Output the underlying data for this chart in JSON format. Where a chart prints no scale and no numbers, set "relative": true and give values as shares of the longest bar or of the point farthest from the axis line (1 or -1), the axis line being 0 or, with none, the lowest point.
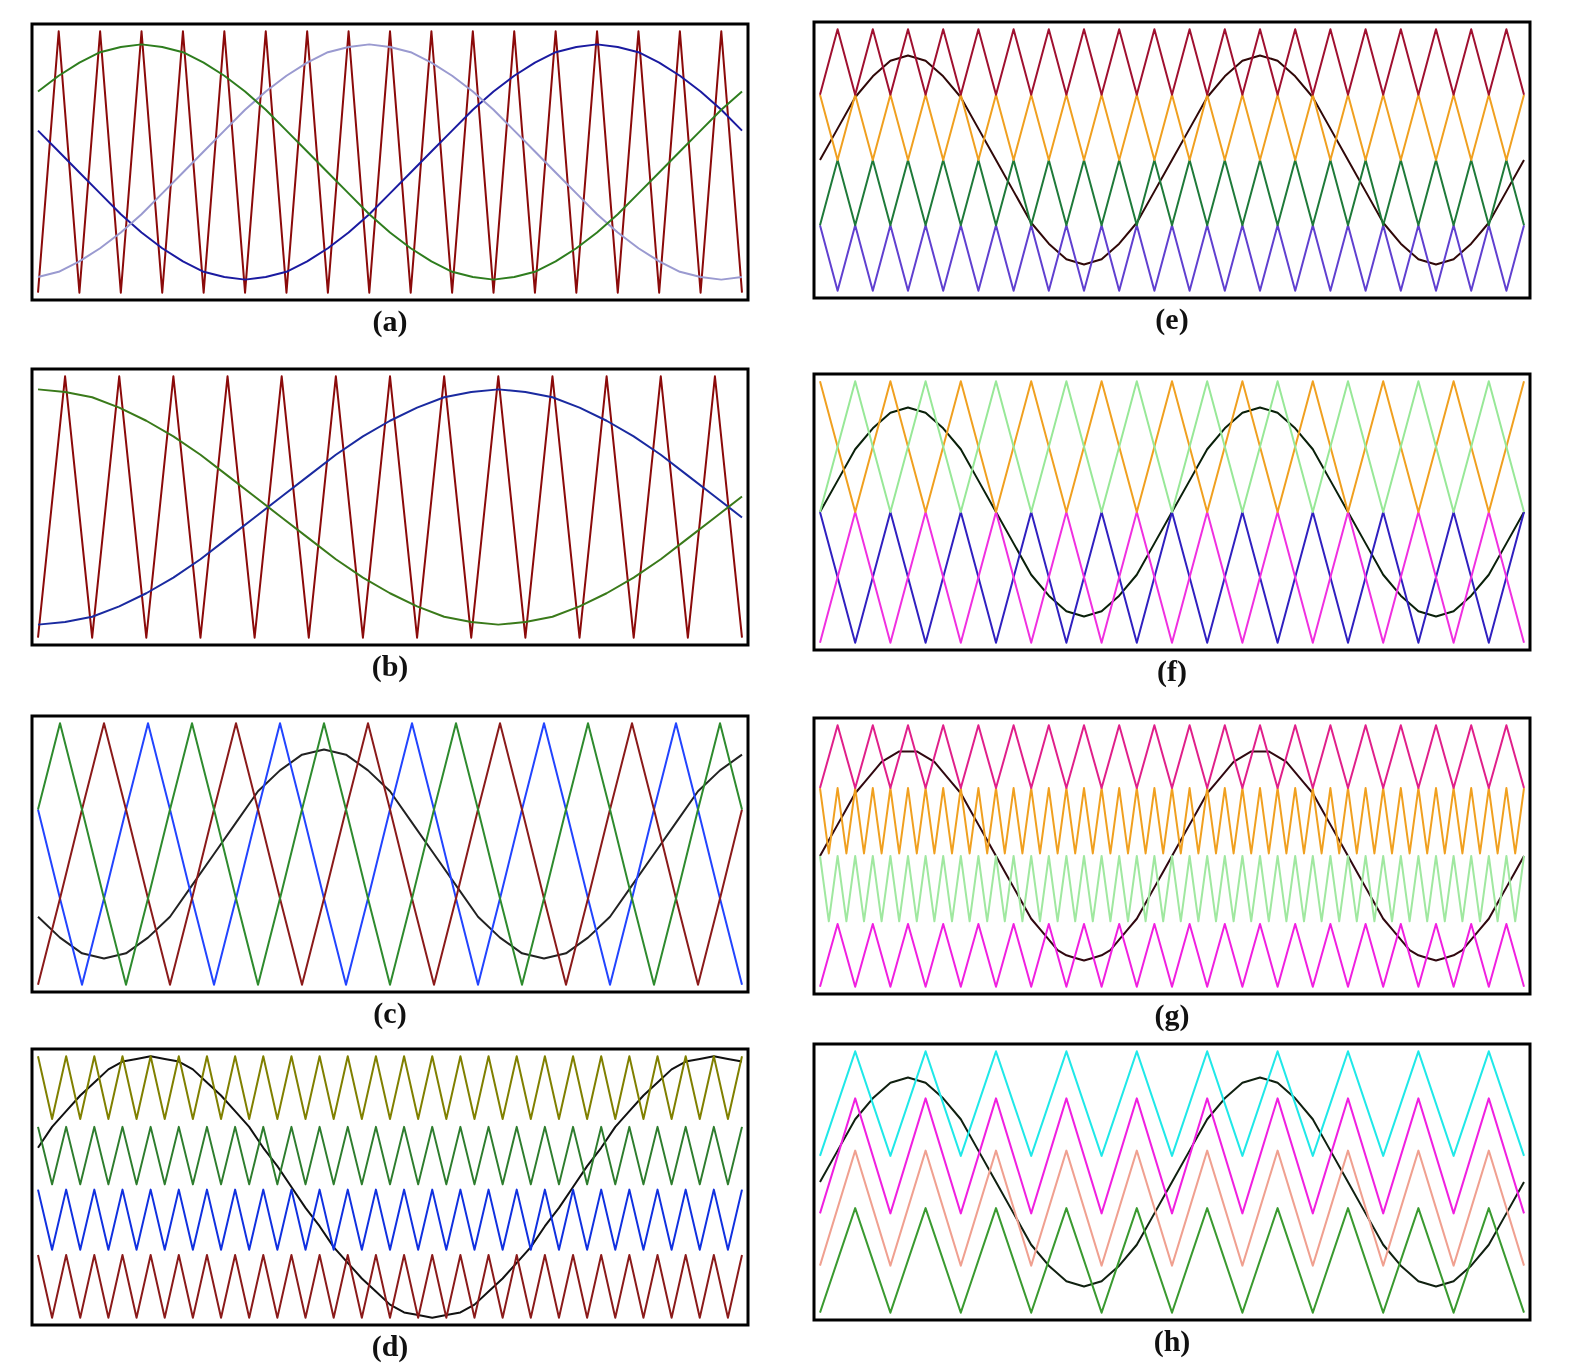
{
  "chart_data": [
    {
      "type": "line",
      "title": "(a)",
      "relative": true,
      "tick_labels": false,
      "categories": [
        null,
        null,
        null,
        null,
        null,
        null,
        null,
        null,
        null,
        null,
        null,
        null,
        null,
        null,
        null,
        null,
        null,
        null,
        null,
        null,
        null,
        null,
        null,
        null,
        null,
        null,
        null,
        null,
        null,
        null,
        null,
        null,
        null,
        null,
        null
      ],
      "series": [
        {
          "color": "#2e7d1e",
          "values": [
            0.77,
            0.83,
            0.88,
            0.92,
            0.94,
            0.95,
            0.94,
            0.92,
            0.88,
            0.83,
            0.77,
            0.7,
            0.62,
            0.54,
            0.46,
            0.38,
            0.3,
            0.23,
            0.17,
            0.12,
            0.08,
            0.06,
            0.05,
            0.06,
            0.08,
            0.12,
            0.17,
            0.23,
            0.3,
            0.38,
            0.46,
            0.54,
            0.62,
            0.7,
            0.77
          ]
        },
        {
          "color": "#9a9ad0",
          "values": [
            0.06,
            0.08,
            0.12,
            0.17,
            0.23,
            0.3,
            0.38,
            0.46,
            0.54,
            0.62,
            0.7,
            0.77,
            0.83,
            0.88,
            0.92,
            0.94,
            0.95,
            0.94,
            0.92,
            0.88,
            0.83,
            0.77,
            0.7,
            0.62,
            0.54,
            0.46,
            0.38,
            0.3,
            0.23,
            0.17,
            0.12,
            0.08,
            0.06,
            0.05,
            0.06
          ]
        },
        {
          "color": "#1a1aa0",
          "values": [
            0.62,
            0.54,
            0.46,
            0.38,
            0.3,
            0.23,
            0.17,
            0.12,
            0.08,
            0.06,
            0.05,
            0.06,
            0.08,
            0.12,
            0.17,
            0.23,
            0.3,
            0.38,
            0.46,
            0.54,
            0.62,
            0.7,
            0.77,
            0.83,
            0.88,
            0.92,
            0.94,
            0.95,
            0.94,
            0.92,
            0.88,
            0.83,
            0.77,
            0.7,
            0.62
          ]
        },
        {
          "color": "#8b0a0a",
          "values": [
            0,
            1,
            0,
            1,
            0,
            1,
            0,
            1,
            0,
            1,
            0,
            1,
            0,
            1,
            0,
            1,
            0,
            1,
            0,
            1,
            0,
            1,
            0,
            1,
            0,
            1,
            0,
            1,
            0,
            1,
            0,
            1,
            0,
            1,
            0
          ]
        }
      ]
    },
    {
      "type": "line",
      "title": "(b)",
      "relative": true,
      "tick_labels": false,
      "categories": [
        null,
        null,
        null,
        null,
        null,
        null,
        null,
        null,
        null,
        null,
        null,
        null,
        null,
        null,
        null,
        null,
        null,
        null,
        null,
        null,
        null,
        null,
        null,
        null,
        null,
        null,
        null
      ],
      "series": [
        {
          "color": "#3a7a1a",
          "values": [
            0.95,
            0.94,
            0.92,
            0.88,
            0.83,
            0.77,
            0.7,
            0.62,
            0.54,
            0.46,
            0.38,
            0.3,
            0.23,
            0.17,
            0.12,
            0.08,
            0.06,
            0.05,
            0.06,
            0.08,
            0.12,
            0.17,
            0.23,
            0.3,
            0.38,
            0.46,
            0.54
          ]
        },
        {
          "color": "#1a2aa0",
          "values": [
            0.05,
            0.06,
            0.08,
            0.12,
            0.17,
            0.23,
            0.3,
            0.38,
            0.46,
            0.54,
            0.62,
            0.7,
            0.77,
            0.83,
            0.88,
            0.92,
            0.94,
            0.95,
            0.94,
            0.92,
            0.88,
            0.83,
            0.77,
            0.7,
            0.62,
            0.54,
            0.46
          ]
        },
        {
          "color": "#8b0a0a",
          "values": [
            0,
            1,
            0,
            1,
            0,
            1,
            0,
            1,
            0,
            1,
            0,
            1,
            0,
            1,
            0,
            1,
            0,
            1,
            0,
            1,
            0,
            1,
            0,
            1,
            0,
            1,
            0
          ]
        }
      ]
    },
    {
      "type": "line",
      "title": "(c)",
      "relative": true,
      "tick_labels": false,
      "categories": [
        null,
        null,
        null,
        null,
        null,
        null,
        null,
        null,
        null,
        null,
        null,
        null,
        null,
        null,
        null,
        null,
        null,
        null,
        null,
        null,
        null,
        null,
        null,
        null,
        null,
        null,
        null,
        null,
        null,
        null,
        null,
        null,
        null
      ],
      "series": [
        {
          "color": "#2e8b2e",
          "values": [
            0.67,
            1,
            0.67,
            0.33,
            0,
            0.33,
            0.67,
            1,
            0.67,
            0.33,
            0,
            0.33,
            0.67,
            1,
            0.67,
            0.33,
            0,
            0.33,
            0.67,
            1,
            0.67,
            0.33,
            0,
            0.33,
            0.67,
            1,
            0.67,
            0.33,
            0,
            0.33,
            0.67,
            1,
            0.67
          ]
        },
        {
          "color": "#8b1a1a",
          "values": [
            0,
            0.33,
            0.67,
            1,
            0.67,
            0.33,
            0,
            0.33,
            0.67,
            1,
            0.67,
            0.33,
            0,
            0.33,
            0.67,
            1,
            0.67,
            0.33,
            0,
            0.33,
            0.67,
            1,
            0.67,
            0.33,
            0,
            0.33,
            0.67,
            1,
            0.67,
            0.33,
            0,
            0.33,
            0.67
          ]
        },
        {
          "color": "#2244ff",
          "values": [
            0.67,
            0.33,
            0,
            0.33,
            0.67,
            1,
            0.67,
            0.33,
            0,
            0.33,
            0.67,
            1,
            0.67,
            0.33,
            0,
            0.33,
            0.67,
            1,
            0.67,
            0.33,
            0,
            0.33,
            0.67,
            1,
            0.67,
            0.33,
            0,
            0.33,
            0.67,
            1,
            0.67,
            0.33,
            0
          ]
        },
        {
          "color": "#222222",
          "values": [
            0.26,
            0.18,
            0.12,
            0.1,
            0.12,
            0.18,
            0.26,
            0.38,
            0.5,
            0.62,
            0.74,
            0.82,
            0.88,
            0.9,
            0.88,
            0.82,
            0.74,
            0.62,
            0.5,
            0.38,
            0.26,
            0.18,
            0.12,
            0.1,
            0.12,
            0.18,
            0.26,
            0.38,
            0.5,
            0.62,
            0.74,
            0.82,
            0.88
          ]
        }
      ]
    },
    {
      "type": "line",
      "title": "(d)",
      "relative": true,
      "tick_labels": false,
      "categories": [
        null,
        null,
        null,
        null,
        null,
        null,
        null,
        null,
        null,
        null,
        null,
        null,
        null,
        null,
        null,
        null,
        null,
        null,
        null,
        null,
        null,
        null,
        null,
        null,
        null,
        null,
        null,
        null,
        null,
        null,
        null,
        null,
        null,
        null,
        null,
        null,
        null,
        null,
        null,
        null,
        null,
        null,
        null,
        null,
        null,
        null,
        null,
        null,
        null,
        null,
        null
      ],
      "series": [
        {
          "color": "#808000",
          "values": [
            1,
            0.76,
            1,
            0.76,
            1,
            0.76,
            1,
            0.76,
            1,
            0.76,
            1,
            0.76,
            1,
            0.76,
            1,
            0.76,
            1,
            0.76,
            1,
            0.76,
            1,
            0.76,
            1,
            0.76,
            1,
            0.76,
            1,
            0.76,
            1,
            0.76,
            1,
            0.76,
            1,
            0.76,
            1,
            0.76,
            1,
            0.76,
            1,
            0.76,
            1,
            0.76,
            1,
            0.76,
            1,
            0.76,
            1,
            0.76,
            1,
            0.76,
            1
          ]
        },
        {
          "color": "#2e7d2e",
          "values": [
            0.73,
            0.51,
            0.73,
            0.51,
            0.73,
            0.51,
            0.73,
            0.51,
            0.73,
            0.51,
            0.73,
            0.51,
            0.73,
            0.51,
            0.73,
            0.51,
            0.73,
            0.51,
            0.73,
            0.51,
            0.73,
            0.51,
            0.73,
            0.51,
            0.73,
            0.51,
            0.73,
            0.51,
            0.73,
            0.51,
            0.73,
            0.51,
            0.73,
            0.51,
            0.73,
            0.51,
            0.73,
            0.51,
            0.73,
            0.51,
            0.73,
            0.51,
            0.73,
            0.51,
            0.73,
            0.51,
            0.73,
            0.51,
            0.73,
            0.51,
            0.73
          ]
        },
        {
          "color": "#1030e0",
          "values": [
            0.49,
            0.26,
            0.49,
            0.26,
            0.49,
            0.26,
            0.49,
            0.26,
            0.49,
            0.26,
            0.49,
            0.26,
            0.49,
            0.26,
            0.49,
            0.26,
            0.49,
            0.26,
            0.49,
            0.26,
            0.49,
            0.26,
            0.49,
            0.26,
            0.49,
            0.26,
            0.49,
            0.26,
            0.49,
            0.26,
            0.49,
            0.26,
            0.49,
            0.26,
            0.49,
            0.26,
            0.49,
            0.26,
            0.49,
            0.26,
            0.49,
            0.26,
            0.49,
            0.26,
            0.49,
            0.26,
            0.49,
            0.26,
            0.49,
            0.26,
            0.49
          ]
        },
        {
          "color": "#8b1a1a",
          "values": [
            0.24,
            0,
            0.24,
            0,
            0.24,
            0,
            0.24,
            0,
            0.24,
            0,
            0.24,
            0,
            0.24,
            0,
            0.24,
            0,
            0.24,
            0,
            0.24,
            0,
            0.24,
            0,
            0.24,
            0,
            0.24,
            0,
            0.24,
            0,
            0.24,
            0,
            0.24,
            0,
            0.24,
            0,
            0.24,
            0,
            0.24,
            0,
            0.24,
            0,
            0.24,
            0,
            0.24,
            0,
            0.24,
            0,
            0.24,
            0,
            0.24,
            0,
            0.24
          ]
        },
        {
          "color": "#111111",
          "values": [
            0.65,
            0.73,
            0.79,
            0.85,
            0.9,
            0.95,
            0.98,
            0.99,
            1,
            0.99,
            0.98,
            0.95,
            0.9,
            0.85,
            0.79,
            0.73,
            0.65,
            0.58,
            0.5,
            0.42,
            0.35,
            0.27,
            0.21,
            0.15,
            0.1,
            0.05,
            0.02,
            0.01,
            0,
            0.01,
            0.02,
            0.05,
            0.1,
            0.15,
            0.21,
            0.27,
            0.35,
            0.42,
            0.5,
            0.58,
            0.65,
            0.73,
            0.79,
            0.85,
            0.9,
            0.95,
            0.98,
            0.99,
            1,
            0.99,
            0.98
          ]
        }
      ]
    },
    {
      "type": "line",
      "title": "(e)",
      "relative": true,
      "tick_labels": false,
      "categories": [
        null,
        null,
        null,
        null,
        null,
        null,
        null,
        null,
        null,
        null,
        null,
        null,
        null,
        null,
        null,
        null,
        null,
        null,
        null,
        null,
        null,
        null,
        null,
        null,
        null,
        null,
        null,
        null,
        null,
        null,
        null,
        null,
        null,
        null,
        null,
        null,
        null,
        null,
        null,
        null,
        null
      ],
      "series": [
        {
          "color": "#a01030",
          "values": [
            0.75,
            1,
            0.75,
            1,
            0.75,
            1,
            0.75,
            1,
            0.75,
            1,
            0.75,
            1,
            0.75,
            1,
            0.75,
            1,
            0.75,
            1,
            0.75,
            1,
            0.75,
            1,
            0.75,
            1,
            0.75,
            1,
            0.75,
            1,
            0.75,
            1,
            0.75,
            1,
            0.75,
            1,
            0.75,
            1,
            0.75,
            1,
            0.75,
            1,
            0.75
          ]
        },
        {
          "color": "#f0a020",
          "values": [
            0.75,
            0.5,
            0.75,
            0.5,
            0.75,
            0.5,
            0.75,
            0.5,
            0.75,
            0.5,
            0.75,
            0.5,
            0.75,
            0.5,
            0.75,
            0.5,
            0.75,
            0.5,
            0.75,
            0.5,
            0.75,
            0.5,
            0.75,
            0.5,
            0.75,
            0.5,
            0.75,
            0.5,
            0.75,
            0.5,
            0.75,
            0.5,
            0.75,
            0.5,
            0.75,
            0.5,
            0.75,
            0.5,
            0.75,
            0.5,
            0.75
          ]
        },
        {
          "color": "#1e7a3a",
          "values": [
            0.25,
            0.5,
            0.25,
            0.5,
            0.25,
            0.5,
            0.25,
            0.5,
            0.25,
            0.5,
            0.25,
            0.5,
            0.25,
            0.5,
            0.25,
            0.5,
            0.25,
            0.5,
            0.25,
            0.5,
            0.25,
            0.5,
            0.25,
            0.5,
            0.25,
            0.5,
            0.25,
            0.5,
            0.25,
            0.5,
            0.25,
            0.5,
            0.25,
            0.5,
            0.25,
            0.5,
            0.25,
            0.5,
            0.25,
            0.5,
            0.25
          ]
        },
        {
          "color": "#6040d0",
          "values": [
            0.25,
            0,
            0.25,
            0,
            0.25,
            0,
            0.25,
            0,
            0.25,
            0,
            0.25,
            0,
            0.25,
            0,
            0.25,
            0,
            0.25,
            0,
            0.25,
            0,
            0.25,
            0,
            0.25,
            0,
            0.25,
            0,
            0.25,
            0,
            0.25,
            0,
            0.25,
            0,
            0.25,
            0,
            0.25,
            0,
            0.25,
            0,
            0.25,
            0,
            0.25
          ]
        },
        {
          "color": "#300808",
          "values": [
            0.5,
            0.62,
            0.74,
            0.82,
            0.88,
            0.9,
            0.88,
            0.82,
            0.74,
            0.62,
            0.5,
            0.38,
            0.26,
            0.18,
            0.12,
            0.1,
            0.12,
            0.18,
            0.26,
            0.38,
            0.5,
            0.62,
            0.74,
            0.82,
            0.88,
            0.9,
            0.88,
            0.82,
            0.74,
            0.62,
            0.5,
            0.38,
            0.26,
            0.18,
            0.12,
            0.1,
            0.12,
            0.18,
            0.26,
            0.38,
            0.5
          ]
        }
      ]
    },
    {
      "type": "line",
      "title": "(f)",
      "relative": true,
      "tick_labels": false,
      "categories": [
        null,
        null,
        null,
        null,
        null,
        null,
        null,
        null,
        null,
        null,
        null,
        null,
        null,
        null,
        null,
        null,
        null,
        null,
        null,
        null,
        null,
        null,
        null,
        null,
        null,
        null,
        null,
        null,
        null,
        null,
        null,
        null,
        null,
        null,
        null,
        null,
        null,
        null,
        null,
        null,
        null
      ],
      "series": [
        {
          "color": "#98e898",
          "values": [
            0.5,
            0.75,
            1,
            0.75,
            0.5,
            0.75,
            1,
            0.75,
            0.5,
            0.75,
            1,
            0.75,
            0.5,
            0.75,
            1,
            0.75,
            0.5,
            0.75,
            1,
            0.75,
            0.5,
            0.75,
            1,
            0.75,
            0.5,
            0.75,
            1,
            0.75,
            0.5,
            0.75,
            1,
            0.75,
            0.5,
            0.75,
            1,
            0.75,
            0.5,
            0.75,
            1,
            0.75,
            0.5
          ]
        },
        {
          "color": "#f0a020",
          "values": [
            1,
            0.75,
            0.5,
            0.75,
            1,
            0.75,
            0.5,
            0.75,
            1,
            0.75,
            0.5,
            0.75,
            1,
            0.75,
            0.5,
            0.75,
            1,
            0.75,
            0.5,
            0.75,
            1,
            0.75,
            0.5,
            0.75,
            1,
            0.75,
            0.5,
            0.75,
            1,
            0.75,
            0.5,
            0.75,
            1,
            0.75,
            0.5,
            0.75,
            1,
            0.75,
            0.5,
            0.75,
            1
          ]
        },
        {
          "color": "#f030e0",
          "values": [
            0,
            0.25,
            0.5,
            0.25,
            0,
            0.25,
            0.5,
            0.25,
            0,
            0.25,
            0.5,
            0.25,
            0,
            0.25,
            0.5,
            0.25,
            0,
            0.25,
            0.5,
            0.25,
            0,
            0.25,
            0.5,
            0.25,
            0,
            0.25,
            0.5,
            0.25,
            0,
            0.25,
            0.5,
            0.25,
            0,
            0.25,
            0.5,
            0.25,
            0,
            0.25,
            0.5,
            0.25,
            0
          ]
        },
        {
          "color": "#3020c0",
          "values": [
            0.5,
            0.25,
            0,
            0.25,
            0.5,
            0.25,
            0,
            0.25,
            0.5,
            0.25,
            0,
            0.25,
            0.5,
            0.25,
            0,
            0.25,
            0.5,
            0.25,
            0,
            0.25,
            0.5,
            0.25,
            0,
            0.25,
            0.5,
            0.25,
            0,
            0.25,
            0.5,
            0.25,
            0,
            0.25,
            0.5,
            0.25,
            0,
            0.25,
            0.5,
            0.25,
            0,
            0.25,
            0.5
          ]
        },
        {
          "color": "#0a200a",
          "values": [
            0.5,
            0.62,
            0.74,
            0.82,
            0.88,
            0.9,
            0.88,
            0.82,
            0.74,
            0.62,
            0.5,
            0.38,
            0.26,
            0.18,
            0.12,
            0.1,
            0.12,
            0.18,
            0.26,
            0.38,
            0.5,
            0.62,
            0.74,
            0.82,
            0.88,
            0.9,
            0.88,
            0.82,
            0.74,
            0.62,
            0.5,
            0.38,
            0.26,
            0.18,
            0.12,
            0.1,
            0.12,
            0.18,
            0.26,
            0.38,
            0.5
          ]
        }
      ]
    },
    {
      "type": "line",
      "title": "(g)",
      "relative": true,
      "tick_labels": false,
      "categories": [
        null,
        null,
        null,
        null,
        null,
        null,
        null,
        null,
        null,
        null,
        null,
        null,
        null,
        null,
        null,
        null,
        null,
        null,
        null,
        null,
        null,
        null,
        null,
        null,
        null,
        null,
        null,
        null,
        null,
        null,
        null,
        null,
        null,
        null,
        null,
        null,
        null,
        null,
        null,
        null,
        null,
        null,
        null,
        null,
        null,
        null,
        null,
        null,
        null,
        null,
        null,
        null,
        null,
        null,
        null,
        null,
        null,
        null,
        null,
        null,
        null,
        null,
        null,
        null,
        null,
        null,
        null,
        null,
        null,
        null,
        null,
        null,
        null,
        null,
        null,
        null,
        null,
        null,
        null,
        null,
        null
      ],
      "series": [
        {
          "color": "#e0208a",
          "values": [
            0.76,
            0.88,
            1,
            0.88,
            0.76,
            0.88,
            1,
            0.88,
            0.76,
            0.88,
            1,
            0.88,
            0.76,
            0.88,
            1,
            0.88,
            0.76,
            0.88,
            1,
            0.88,
            0.76,
            0.88,
            1,
            0.88,
            0.76,
            0.88,
            1,
            0.88,
            0.76,
            0.88,
            1,
            0.88,
            0.76,
            0.88,
            1,
            0.88,
            0.76,
            0.88,
            1,
            0.88,
            0.76,
            0.88,
            1,
            0.88,
            0.76,
            0.88,
            1,
            0.88,
            0.76,
            0.88,
            1,
            0.88,
            0.76,
            0.88,
            1,
            0.88,
            0.76,
            0.88,
            1,
            0.88,
            0.76,
            0.88,
            1,
            0.88,
            0.76,
            0.88,
            1,
            0.88,
            0.76,
            0.88,
            1,
            0.88,
            0.76,
            0.88,
            1,
            0.88,
            0.76,
            0.88,
            1,
            0.88,
            0.76
          ]
        },
        {
          "color": "#f0a020",
          "values": [
            0.76,
            0.51,
            0.76,
            0.51,
            0.76,
            0.51,
            0.76,
            0.51,
            0.76,
            0.51,
            0.76,
            0.51,
            0.76,
            0.51,
            0.76,
            0.51,
            0.76,
            0.51,
            0.76,
            0.51,
            0.76,
            0.51,
            0.76,
            0.51,
            0.76,
            0.51,
            0.76,
            0.51,
            0.76,
            0.51,
            0.76,
            0.51,
            0.76,
            0.51,
            0.76,
            0.51,
            0.76,
            0.51,
            0.76,
            0.51,
            0.76,
            0.51,
            0.76,
            0.51,
            0.76,
            0.51,
            0.76,
            0.51,
            0.76,
            0.51,
            0.76,
            0.51,
            0.76,
            0.51,
            0.76,
            0.51,
            0.76,
            0.51,
            0.76,
            0.51,
            0.76,
            0.51,
            0.76,
            0.51,
            0.76,
            0.51,
            0.76,
            0.51,
            0.76,
            0.51,
            0.76,
            0.51,
            0.76,
            0.51,
            0.76,
            0.51,
            0.76,
            0.51,
            0.76,
            0.51,
            0.76
          ]
        },
        {
          "color": "#a0e8a0",
          "values": [
            0.5,
            0.25,
            0.5,
            0.25,
            0.5,
            0.25,
            0.5,
            0.25,
            0.5,
            0.25,
            0.5,
            0.25,
            0.5,
            0.25,
            0.5,
            0.25,
            0.5,
            0.25,
            0.5,
            0.25,
            0.5,
            0.25,
            0.5,
            0.25,
            0.5,
            0.25,
            0.5,
            0.25,
            0.5,
            0.25,
            0.5,
            0.25,
            0.5,
            0.25,
            0.5,
            0.25,
            0.5,
            0.25,
            0.5,
            0.25,
            0.5,
            0.25,
            0.5,
            0.25,
            0.5,
            0.25,
            0.5,
            0.25,
            0.5,
            0.25,
            0.5,
            0.25,
            0.5,
            0.25,
            0.5,
            0.25,
            0.5,
            0.25,
            0.5,
            0.25,
            0.5,
            0.25,
            0.5,
            0.25,
            0.5,
            0.25,
            0.5,
            0.25,
            0.5,
            0.25,
            0.5,
            0.25,
            0.5,
            0.25,
            0.5,
            0.25,
            0.5,
            0.25,
            0.5,
            0.25,
            0.5
          ]
        },
        {
          "color": "#f020e0",
          "values": [
            0,
            0.12,
            0.24,
            0.12,
            0,
            0.12,
            0.24,
            0.12,
            0,
            0.12,
            0.24,
            0.12,
            0,
            0.12,
            0.24,
            0.12,
            0,
            0.12,
            0.24,
            0.12,
            0,
            0.12,
            0.24,
            0.12,
            0,
            0.12,
            0.24,
            0.12,
            0,
            0.12,
            0.24,
            0.12,
            0,
            0.12,
            0.24,
            0.12,
            0,
            0.12,
            0.24,
            0.12,
            0,
            0.12,
            0.24,
            0.12,
            0,
            0.12,
            0.24,
            0.12,
            0,
            0.12,
            0.24,
            0.12,
            0,
            0.12,
            0.24,
            0.12,
            0,
            0.12,
            0.24,
            0.12,
            0,
            0.12,
            0.24,
            0.12,
            0,
            0.12,
            0.24,
            0.12,
            0,
            0.12,
            0.24,
            0.12,
            0,
            0.12,
            0.24,
            0.12,
            0,
            0.12,
            0.24,
            0.12,
            0
          ]
        },
        {
          "color": "#300810",
          "values": [
            0.5,
            0.56,
            0.62,
            0.68,
            0.74,
            0.78,
            0.82,
            0.86,
            0.88,
            0.9,
            0.9,
            0.9,
            0.88,
            0.86,
            0.82,
            0.78,
            0.74,
            0.68,
            0.62,
            0.56,
            0.5,
            0.44,
            0.38,
            0.32,
            0.26,
            0.22,
            0.18,
            0.14,
            0.12,
            0.11,
            0.1,
            0.11,
            0.12,
            0.14,
            0.18,
            0.22,
            0.26,
            0.32,
            0.38,
            0.44,
            0.5,
            0.56,
            0.62,
            0.68,
            0.74,
            0.78,
            0.82,
            0.86,
            0.88,
            0.9,
            0.9,
            0.9,
            0.88,
            0.86,
            0.82,
            0.78,
            0.74,
            0.68,
            0.62,
            0.56,
            0.5,
            0.44,
            0.38,
            0.32,
            0.26,
            0.22,
            0.18,
            0.14,
            0.12,
            0.11,
            0.1,
            0.11,
            0.12,
            0.14,
            0.18,
            0.22,
            0.26,
            0.32,
            0.38,
            0.44,
            0.5
          ]
        }
      ]
    },
    {
      "type": "line",
      "title": "(h)",
      "relative": true,
      "tick_labels": false,
      "categories": [
        null,
        null,
        null,
        null,
        null,
        null,
        null,
        null,
        null,
        null,
        null,
        null,
        null,
        null,
        null,
        null,
        null,
        null,
        null,
        null,
        null,
        null,
        null,
        null,
        null,
        null,
        null,
        null,
        null,
        null,
        null,
        null,
        null,
        null,
        null,
        null,
        null,
        null,
        null,
        null,
        null
      ],
      "series": [
        {
          "color": "#20e8e8",
          "values": [
            0.6,
            0.8,
            1,
            0.8,
            0.6,
            0.8,
            1,
            0.8,
            0.6,
            0.8,
            1,
            0.8,
            0.6,
            0.8,
            1,
            0.8,
            0.6,
            0.8,
            1,
            0.8,
            0.6,
            0.8,
            1,
            0.8,
            0.6,
            0.8,
            1,
            0.8,
            0.6,
            0.8,
            1,
            0.8,
            0.6,
            0.8,
            1,
            0.8,
            0.6,
            0.8,
            1,
            0.8,
            0.6
          ]
        },
        {
          "color": "#f0a090",
          "values": [
            0.18,
            0.4,
            0.62,
            0.4,
            0.18,
            0.4,
            0.62,
            0.4,
            0.18,
            0.4,
            0.62,
            0.4,
            0.18,
            0.4,
            0.62,
            0.4,
            0.18,
            0.4,
            0.62,
            0.4,
            0.18,
            0.4,
            0.62,
            0.4,
            0.18,
            0.4,
            0.62,
            0.4,
            0.18,
            0.4,
            0.62,
            0.4,
            0.18,
            0.4,
            0.62,
            0.4,
            0.18,
            0.4,
            0.62,
            0.4,
            0.18
          ]
        },
        {
          "color": "#f020e0",
          "values": [
            0.38,
            0.6,
            0.82,
            0.6,
            0.38,
            0.6,
            0.82,
            0.6,
            0.38,
            0.6,
            0.82,
            0.6,
            0.38,
            0.6,
            0.82,
            0.6,
            0.38,
            0.6,
            0.82,
            0.6,
            0.38,
            0.6,
            0.82,
            0.6,
            0.38,
            0.6,
            0.82,
            0.6,
            0.38,
            0.6,
            0.82,
            0.6,
            0.38,
            0.6,
            0.82,
            0.6,
            0.38,
            0.6,
            0.82,
            0.6,
            0.38
          ]
        },
        {
          "color": "#3a9a30",
          "values": [
            0,
            0.2,
            0.4,
            0.2,
            0,
            0.2,
            0.4,
            0.2,
            0,
            0.2,
            0.4,
            0.2,
            0,
            0.2,
            0.4,
            0.2,
            0,
            0.2,
            0.4,
            0.2,
            0,
            0.2,
            0.4,
            0.2,
            0,
            0.2,
            0.4,
            0.2,
            0,
            0.2,
            0.4,
            0.2,
            0,
            0.2,
            0.4,
            0.2,
            0,
            0.2,
            0.4,
            0.2,
            0
          ]
        },
        {
          "color": "#102010",
          "values": [
            0.5,
            0.62,
            0.74,
            0.82,
            0.88,
            0.9,
            0.88,
            0.82,
            0.74,
            0.62,
            0.5,
            0.38,
            0.26,
            0.18,
            0.12,
            0.1,
            0.12,
            0.18,
            0.26,
            0.38,
            0.5,
            0.62,
            0.74,
            0.82,
            0.88,
            0.9,
            0.88,
            0.82,
            0.74,
            0.62,
            0.5,
            0.38,
            0.26,
            0.18,
            0.12,
            0.1,
            0.12,
            0.18,
            0.26,
            0.38,
            0.5
          ]
        }
      ]
    }
  ]
}
